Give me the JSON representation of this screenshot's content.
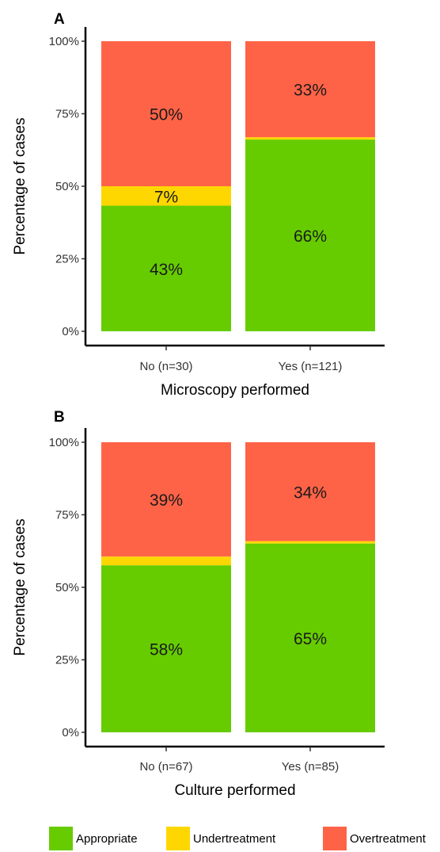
{
  "colors": {
    "Appropriate": "#66cc00",
    "Undertreatment": "#ffd700",
    "Overtreatment": "#ff6347"
  },
  "legend": {
    "items": [
      {
        "label": "Appropriate",
        "color": "#66cc00"
      },
      {
        "label": "Undertreatment",
        "color": "#ffd700"
      },
      {
        "label": "Overtreatment",
        "color": "#ff6347"
      }
    ],
    "position": "bottom"
  },
  "chart_data": [
    {
      "type": "bar",
      "stacked": true,
      "panel": "A",
      "title": "",
      "xlabel": "Microscopy performed",
      "ylabel": "Percentage of cases",
      "ylim": [
        0,
        100
      ],
      "yticks": [
        0,
        25,
        50,
        75,
        100
      ],
      "ytick_labels": [
        "0%",
        "25%",
        "50%",
        "75%",
        "100%"
      ],
      "categories": [
        "No (n=30)",
        "Yes (n=121)"
      ],
      "series": [
        {
          "name": "Appropriate",
          "values": [
            43.3,
            66.1
          ],
          "labels": [
            "43%",
            "66%"
          ]
        },
        {
          "name": "Undertreatment",
          "values": [
            6.7,
            0.8
          ],
          "labels": [
            "7%",
            ""
          ]
        },
        {
          "name": "Overtreatment",
          "values": [
            50.0,
            33.1
          ],
          "labels": [
            "50%",
            "33%"
          ]
        }
      ],
      "grid": false
    },
    {
      "type": "bar",
      "stacked": true,
      "panel": "B",
      "title": "",
      "xlabel": "Culture performed",
      "ylabel": "Percentage of cases",
      "ylim": [
        0,
        100
      ],
      "yticks": [
        0,
        25,
        50,
        75,
        100
      ],
      "ytick_labels": [
        "0%",
        "25%",
        "50%",
        "75%",
        "100%"
      ],
      "categories": [
        "No (n=67)",
        "Yes (n=85)"
      ],
      "series": [
        {
          "name": "Appropriate",
          "values": [
            57.6,
            65.1
          ],
          "labels": [
            "58%",
            "65%"
          ]
        },
        {
          "name": "Undertreatment",
          "values": [
            3.0,
            0.8
          ],
          "labels": [
            "",
            ""
          ]
        },
        {
          "name": "Overtreatment",
          "values": [
            39.4,
            34.1
          ],
          "labels": [
            "39%",
            "34%"
          ]
        }
      ],
      "grid": false
    }
  ]
}
